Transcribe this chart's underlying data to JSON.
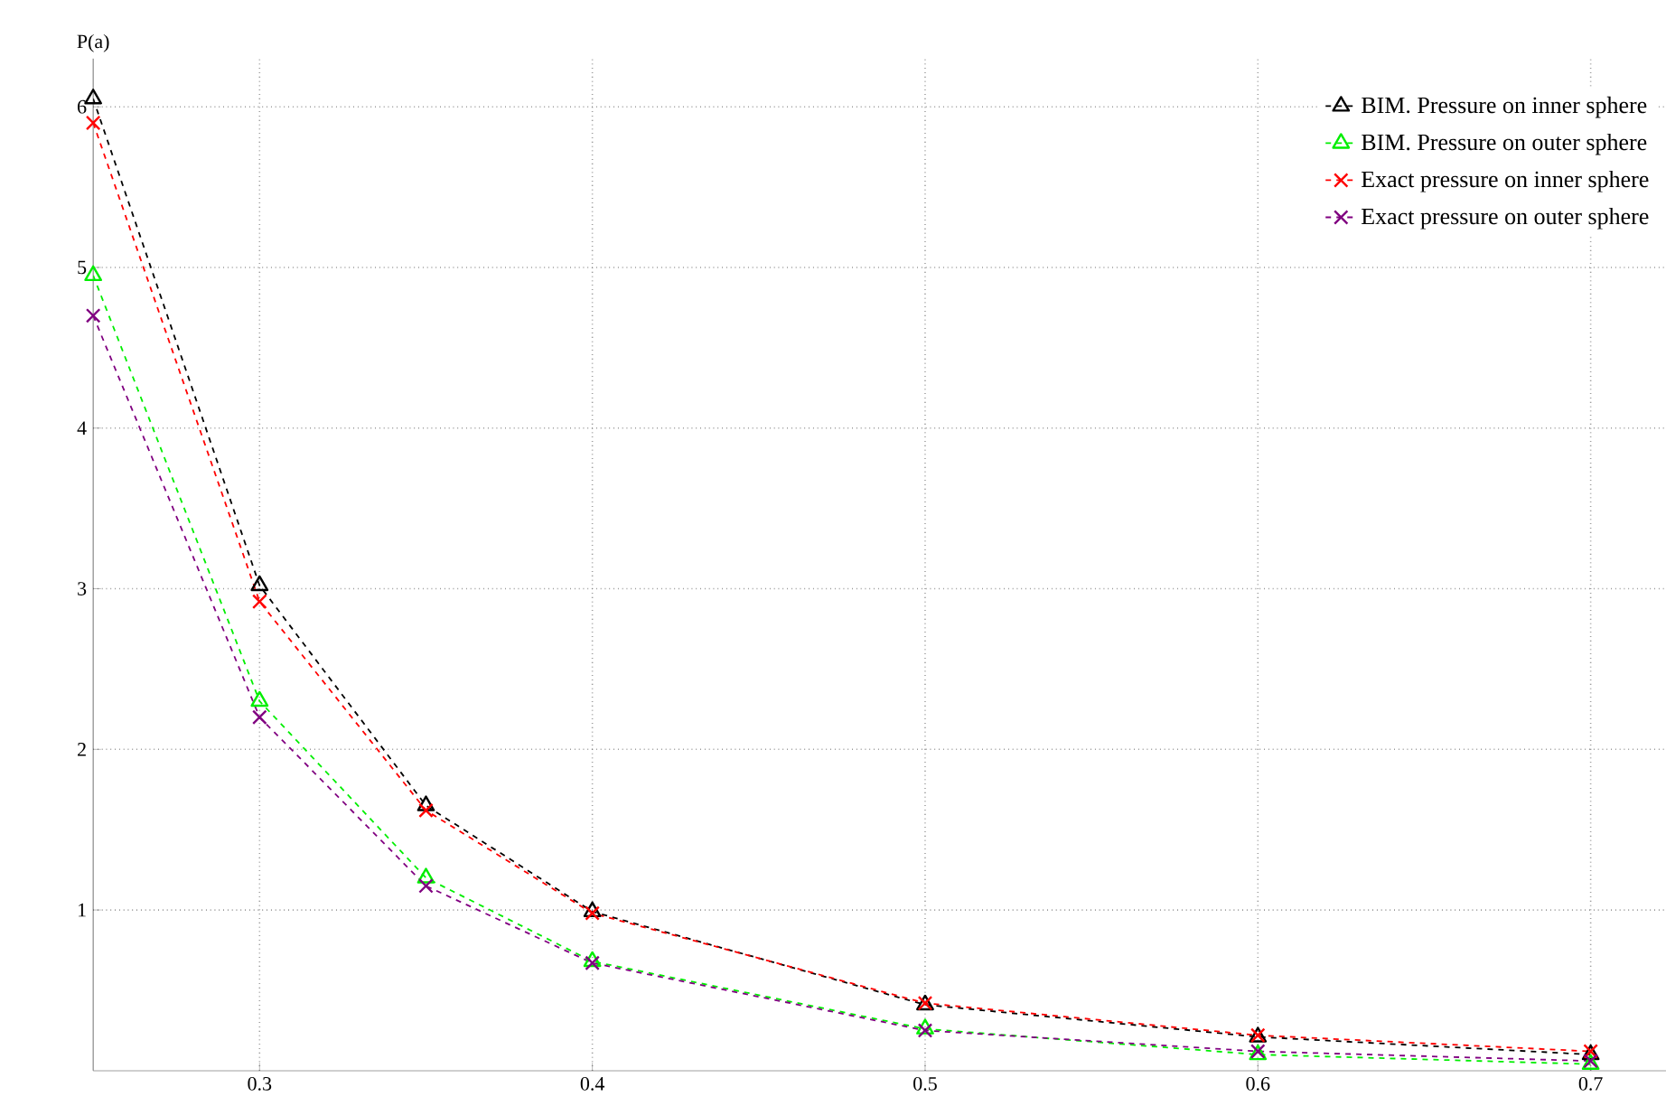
{
  "chart_data": {
    "type": "line",
    "ylabel": "P(a)",
    "x": [
      0.25,
      0.3,
      0.35,
      0.4,
      0.5,
      0.6,
      0.7
    ],
    "series": [
      {
        "name": "BIM. Pressure on inner sphere",
        "color": "#000000",
        "marker": "triangle",
        "line_style": "dashed",
        "values": [
          6.05,
          3.02,
          1.65,
          0.99,
          0.41,
          0.21,
          0.1
        ]
      },
      {
        "name": "BIM. Pressure on outer sphere",
        "color": "#00ee00",
        "marker": "triangle",
        "line_style": "dashed",
        "values": [
          4.95,
          2.3,
          1.2,
          0.68,
          0.26,
          0.1,
          0.04
        ]
      },
      {
        "name": "Exact pressure on inner sphere",
        "color": "#ff0000",
        "marker": "cross",
        "line_style": "dashed",
        "values": [
          5.9,
          2.92,
          1.62,
          0.98,
          0.42,
          0.22,
          0.12
        ]
      },
      {
        "name": "Exact pressure on outer sphere",
        "color": "#800080",
        "marker": "cross",
        "line_style": "dashed",
        "values": [
          4.7,
          2.2,
          1.15,
          0.67,
          0.25,
          0.12,
          0.06
        ]
      }
    ],
    "xlim": [
      0.25,
      0.73
    ],
    "ylim": [
      0,
      6.3
    ],
    "xticks": [
      0.3,
      0.4,
      0.5,
      0.6,
      0.7
    ],
    "yticks": [
      1,
      2,
      3,
      4,
      5,
      6
    ],
    "grid": true,
    "legend": "top right"
  }
}
